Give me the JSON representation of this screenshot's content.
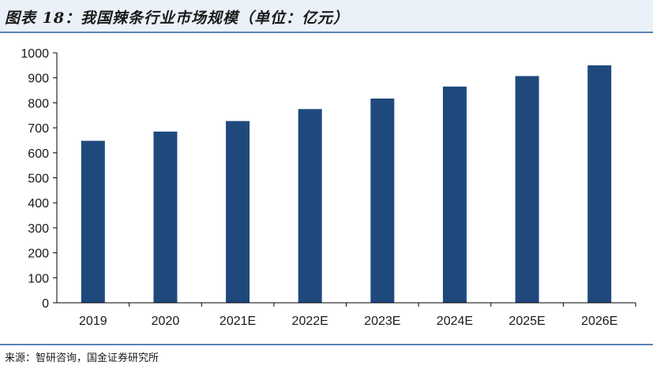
{
  "figure": {
    "title": "图表 18：我国辣条行业市场规模（单位：亿元）",
    "source": "来源：智研咨询，国金证券研究所"
  },
  "colors": {
    "bar": "#1f497d",
    "axis": "#000000",
    "title_band": "#eaf1f9",
    "rule": "#5b82b5"
  },
  "chart_data": {
    "type": "bar",
    "categories": [
      "2019",
      "2020",
      "2021E",
      "2022E",
      "2023E",
      "2024E",
      "2025E",
      "2026E"
    ],
    "values": [
      648,
      685,
      727,
      775,
      817,
      865,
      907,
      950
    ],
    "title": "",
    "xlabel": "",
    "ylabel": "",
    "ylim": [
      0,
      1000
    ],
    "yticks": [
      0,
      100,
      200,
      300,
      400,
      500,
      600,
      700,
      800,
      900,
      1000
    ],
    "grid": false,
    "legend": "none"
  }
}
